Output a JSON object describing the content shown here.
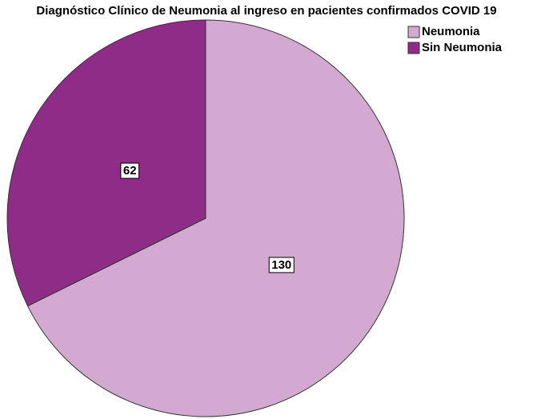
{
  "chart_data": {
    "type": "pie",
    "title": "Diagnóstico Clínico de Neumonia al ingreso en pacientes confirmados COVID 19",
    "categories": [
      "Neumonia",
      "Sin Neumonia"
    ],
    "values": [
      130,
      62
    ],
    "colors": [
      "#d4a9d1",
      "#8e2c87"
    ],
    "legend": "upper right"
  }
}
